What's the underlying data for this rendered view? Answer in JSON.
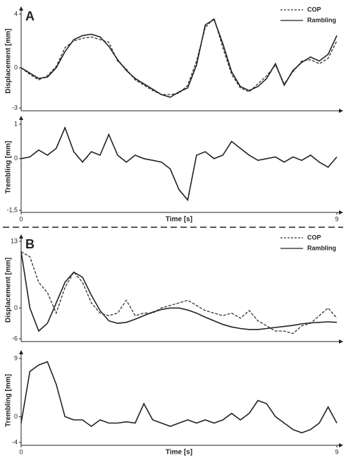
{
  "chart_data": [
    {
      "type": "line",
      "panel_label": "A",
      "y_label": "Displacement [mm]",
      "legend": "upper right",
      "x": [
        0,
        0.25,
        0.5,
        0.75,
        1,
        1.25,
        1.5,
        1.75,
        2,
        2.25,
        2.5,
        2.75,
        3,
        3.25,
        3.5,
        3.75,
        4,
        4.25,
        4.5,
        4.75,
        5,
        5.25,
        5.5,
        5.75,
        6,
        6.25,
        6.5,
        6.75,
        7,
        7.25,
        7.5,
        7.75,
        8,
        8.25,
        8.5,
        8.75,
        9
      ],
      "xlim": [
        0,
        9
      ],
      "ylim": [
        -3,
        4
      ],
      "yticks": [
        -3,
        0,
        4
      ],
      "series": [
        {
          "name": "COP",
          "color": "#333333",
          "line_style": "dashed",
          "values": [
            0,
            -0.5,
            -0.9,
            -0.6,
            0.1,
            1.5,
            2.0,
            2.2,
            2.3,
            2.1,
            1.9,
            0.5,
            -0.1,
            -0.9,
            -1.3,
            -1.7,
            -2.0,
            -2.0,
            -1.9,
            -1.3,
            0.5,
            3.0,
            3.7,
            1.5,
            -0.5,
            -1.5,
            -1.8,
            -1.2,
            -0.6,
            0.2,
            -1.2,
            -0.3,
            0.5,
            0.6,
            0.3,
            0.7,
            2.0
          ]
        },
        {
          "name": "Rambling",
          "color": "#222222",
          "line_style": "solid",
          "values": [
            0,
            -0.4,
            -0.8,
            -0.7,
            0,
            1.2,
            2.1,
            2.4,
            2.5,
            2.3,
            1.6,
            0.6,
            -0.2,
            -0.8,
            -1.2,
            -1.6,
            -2.0,
            -2.2,
            -1.8,
            -1.5,
            0.2,
            3.2,
            3.6,
            1.8,
            -0.3,
            -1.4,
            -1.7,
            -1.4,
            -0.8,
            0.3,
            -1.3,
            -0.2,
            0.4,
            0.8,
            0.5,
            1.0,
            2.4
          ]
        }
      ]
    },
    {
      "type": "line",
      "y_label": "Trembling [mm]",
      "x_label": "Time [s]",
      "x": [
        0,
        0.25,
        0.5,
        0.75,
        1,
        1.25,
        1.5,
        1.75,
        2,
        2.25,
        2.5,
        2.75,
        3,
        3.25,
        3.5,
        3.75,
        4,
        4.25,
        4.5,
        4.75,
        5,
        5.25,
        5.5,
        5.75,
        6,
        6.25,
        6.5,
        6.75,
        7,
        7.25,
        7.5,
        7.75,
        8,
        8.25,
        8.5,
        8.75,
        9
      ],
      "xlim": [
        0,
        9
      ],
      "xticks": [
        0,
        9
      ],
      "ylim": [
        -1.5,
        1
      ],
      "yticks": [
        {
          "value": -1.5,
          "label": "-1,5"
        },
        0,
        1
      ],
      "color": "#222222",
      "values": [
        0,
        0.05,
        0.25,
        0.1,
        0.3,
        0.9,
        0.2,
        -0.1,
        0.2,
        0.1,
        0.7,
        0.1,
        -0.1,
        0.1,
        0,
        -0.05,
        -0.1,
        -0.3,
        -0.9,
        -1.2,
        0.1,
        0.2,
        0,
        0.1,
        0.5,
        0.3,
        0.1,
        -0.05,
        0,
        0.05,
        -0.1,
        0.05,
        -0.05,
        0.1,
        -0.1,
        -0.25,
        0.05
      ]
    },
    {
      "type": "line",
      "panel_label": "B",
      "y_label": "Displacement [mm]",
      "legend": "upper right",
      "x": [
        0,
        0.25,
        0.5,
        0.75,
        1,
        1.25,
        1.5,
        1.75,
        2,
        2.25,
        2.5,
        2.75,
        3,
        3.25,
        3.5,
        3.75,
        4,
        4.25,
        4.5,
        4.75,
        5,
        5.25,
        5.5,
        5.75,
        6,
        6.25,
        6.5,
        6.75,
        7,
        7.25,
        7.5,
        7.75,
        8,
        8.25,
        8.5,
        8.75,
        9
      ],
      "xlim": [
        0,
        9
      ],
      "ylim": [
        -6,
        13
      ],
      "yticks": [
        -6,
        0,
        13
      ],
      "series": [
        {
          "name": "COP",
          "color": "#333333",
          "line_style": "dashed",
          "values": [
            11,
            10,
            5,
            3,
            -1,
            4,
            7,
            5,
            1,
            -1,
            -1.5,
            -1,
            1.5,
            -1.5,
            -1,
            -1,
            0,
            0.5,
            1,
            1.5,
            0.5,
            -0.5,
            -1,
            -1.5,
            -1,
            -2,
            -0.5,
            -2.5,
            -3.5,
            -4.5,
            -4.5,
            -5,
            -3.5,
            -3,
            -1.5,
            0,
            -2
          ]
        },
        {
          "name": "Rambling",
          "color": "#222222",
          "line_style": "solid",
          "values": [
            11,
            0,
            -4.5,
            -3,
            1,
            5,
            7,
            6,
            2.5,
            -0.5,
            -2.5,
            -3,
            -2.8,
            -2.2,
            -1.5,
            -0.8,
            -0.3,
            0,
            0,
            -0.4,
            -1,
            -1.8,
            -2.5,
            -3.2,
            -3.7,
            -4,
            -4.2,
            -4.2,
            -4,
            -3.8,
            -3.6,
            -3.4,
            -3.1,
            -2.9,
            -2.8,
            -2.7,
            -2.8
          ]
        }
      ]
    },
    {
      "type": "line",
      "y_label": "Trembling [mm]",
      "x_label": "Time [s]",
      "x": [
        0,
        0.25,
        0.5,
        0.75,
        1,
        1.25,
        1.5,
        1.75,
        2,
        2.25,
        2.5,
        2.75,
        3,
        3.25,
        3.5,
        3.75,
        4,
        4.25,
        4.5,
        4.75,
        5,
        5.25,
        5.5,
        5.75,
        6,
        6.25,
        6.5,
        6.75,
        7,
        7.25,
        7.5,
        7.75,
        8,
        8.25,
        8.5,
        8.75,
        9
      ],
      "xlim": [
        0,
        9
      ],
      "xticks": [
        0,
        9
      ],
      "ylim": [
        -4,
        9
      ],
      "yticks": [
        -4,
        0,
        9
      ],
      "color": "#222222",
      "values": [
        -1,
        7,
        8,
        8.5,
        5,
        0,
        -0.5,
        -0.5,
        -1.5,
        -0.5,
        -1,
        -1,
        -0.8,
        -1,
        2,
        -0.5,
        -1,
        -1.5,
        -1,
        -0.5,
        -1,
        -0.5,
        -1,
        -0.5,
        0.5,
        -0.5,
        0.5,
        2.5,
        2,
        0,
        -1,
        -2,
        -2.5,
        -2,
        -1,
        1.5,
        -1
      ]
    }
  ]
}
